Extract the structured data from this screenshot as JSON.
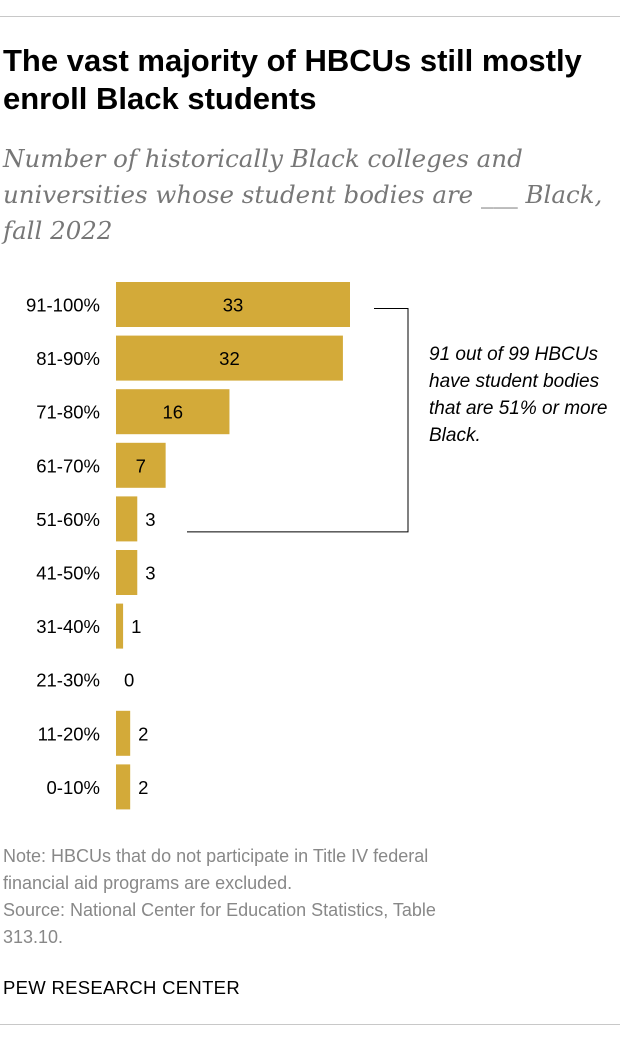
{
  "title": "The vast majority of HBCUs still mostly enroll Black students",
  "subtitle": "Number of historically Black colleges and universities whose student bodies are ___ Black, fall 2022",
  "chart_data": {
    "type": "bar",
    "orientation": "horizontal",
    "categories": [
      "91-100%",
      "81-90%",
      "71-80%",
      "61-70%",
      "51-60%",
      "41-50%",
      "31-40%",
      "21-30%",
      "11-20%",
      "0-10%"
    ],
    "values": [
      33,
      32,
      16,
      7,
      3,
      3,
      1,
      0,
      2,
      2
    ],
    "bar_color": "#d3aa39",
    "xlim": [
      0,
      33
    ],
    "grid": false,
    "legend": "none",
    "annotation": "91 out of 99 HBCUs have student bodies that are 51% or more Black.",
    "annotation_bracket": [
      "91-100%",
      "51-60%"
    ]
  },
  "note": "Note: HBCUs that do not participate in Title IV federal\nfinancial aid programs are excluded.",
  "source": "Source: National Center for Education Statistics, Table\n313.10.",
  "brand": "PEW RESEARCH CENTER"
}
